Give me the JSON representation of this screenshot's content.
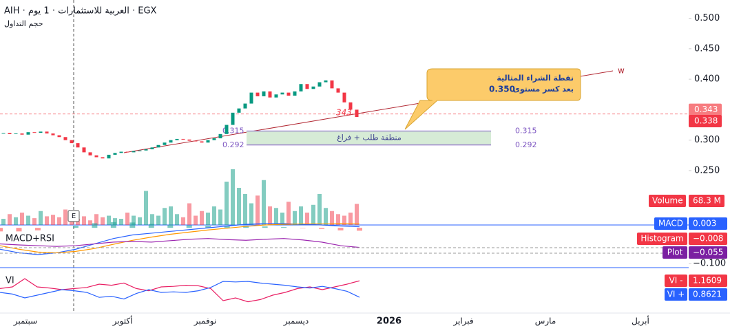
{
  "header": {
    "title": "AIH · العربية للاستثمارات · 1 يوم · EGX",
    "subtitle": "حجم التداول"
  },
  "chart_data": {
    "type": "candlestick",
    "open_first": 0.311,
    "closes": [
      0.312,
      0.31,
      0.311,
      0.309,
      0.313,
      0.312,
      0.314,
      0.311,
      0.308,
      0.305,
      0.3,
      0.295,
      0.288,
      0.28,
      0.275,
      0.272,
      0.27,
      0.276,
      0.279,
      0.281,
      0.28,
      0.282,
      0.283,
      0.285,
      0.288,
      0.292,
      0.296,
      0.3,
      0.302,
      0.301,
      0.299,
      0.298,
      0.296,
      0.3,
      0.303,
      0.31,
      0.325,
      0.345,
      0.352,
      0.36,
      0.378,
      0.372,
      0.38,
      0.37,
      0.375,
      0.378,
      0.373,
      0.38,
      0.392,
      0.384,
      0.388,
      0.395,
      0.398,
      0.385,
      0.378,
      0.362,
      0.35,
      0.338
    ],
    "up_color": "#089981",
    "down_color": "#f23645",
    "ylim": [
      0.163,
      0.53
    ],
    "yticks": [
      {
        "value": 0.5,
        "label": "0.500"
      },
      {
        "value": 0.45,
        "label": "0.450"
      },
      {
        "value": 0.4,
        "label": "0.400"
      },
      {
        "value": 0.3,
        "label": "0.300"
      },
      {
        "value": 0.25,
        "label": "0.250"
      }
    ],
    "price_tags": [
      {
        "value": 0.343,
        "label": "0.343",
        "color": "#f77c80"
      },
      {
        "value": 0.338,
        "label": "0.338",
        "color": "#f23645"
      }
    ],
    "zone": {
      "label": "منطقة طلب + فراغ",
      "top": {
        "value": 0.315,
        "label": "0.315"
      },
      "bottom": {
        "value": 0.292,
        "label": "0.292"
      }
    },
    "callout": {
      "line1": "نقطة الشراء المثالية",
      "line2": "بعد كسر مستوى",
      "level": {
        "value": 0.35,
        "label": "0.350"
      }
    },
    "mark_label": "343",
    "wave_label": "w",
    "event_label": "E",
    "volume": {
      "name": "Volume",
      "last": {
        "value": 68.3,
        "label": "68.3 M"
      },
      "values": [
        20,
        35,
        25,
        40,
        30,
        22,
        45,
        28,
        33,
        25,
        50,
        30,
        20,
        28,
        15,
        35,
        25,
        30,
        22,
        20,
        40,
        30,
        25,
        110,
        35,
        30,
        55,
        60,
        35,
        25,
        70,
        30,
        45,
        40,
        60,
        50,
        140,
        180,
        120,
        100,
        70,
        95,
        145,
        60,
        55,
        40,
        75,
        45,
        60,
        40,
        65,
        100,
        55,
        45,
        35,
        30,
        40,
        68.3
      ]
    },
    "macd": {
      "name": "MACD+RSI",
      "macd_label": "MACD",
      "macd_value": {
        "value": 0.003,
        "label": "0.003"
      },
      "hist_label": "Histogram",
      "hist_value": {
        "value": -0.008,
        "label": "−0.008"
      },
      "plot_label": "Plot",
      "plot_value": {
        "value": -0.055,
        "label": "−0.055"
      },
      "tick": {
        "value": -0.1,
        "label": "−0.100"
      },
      "macd_line": [
        -0.06,
        -0.07,
        -0.075,
        -0.07,
        -0.06,
        -0.045,
        -0.03,
        -0.02,
        -0.015,
        -0.01,
        -0.005,
        0.0,
        0.005,
        0.01,
        0.012,
        0.012,
        0.01,
        0.008,
        0.005,
        0.003
      ],
      "signal_line": [
        -0.05,
        -0.06,
        -0.068,
        -0.07,
        -0.066,
        -0.058,
        -0.046,
        -0.035,
        -0.026,
        -0.018,
        -0.012,
        -0.006,
        -0.001,
        0.004,
        0.008,
        0.01,
        0.011,
        0.011,
        0.012,
        0.011
      ],
      "plot_line": [
        -0.045,
        -0.048,
        -0.05,
        -0.052,
        -0.05,
        -0.045,
        -0.04,
        -0.038,
        -0.04,
        -0.036,
        -0.032,
        -0.03,
        -0.033,
        -0.035,
        -0.032,
        -0.03,
        -0.034,
        -0.04,
        -0.05,
        -0.055
      ],
      "histogram": [
        -0.01,
        -0.01,
        -0.007,
        0,
        0.006,
        0.013,
        0.016,
        0.015,
        0.011,
        0.008,
        0.007,
        0.006,
        0.006,
        0.006,
        0.004,
        0.002,
        -0.001,
        -0.003,
        -0.007,
        -0.008
      ]
    },
    "vi": {
      "name": "VI",
      "minus_label": "VI -",
      "plus_label": "VI +",
      "minus_value": {
        "value": 1.1609,
        "label": "1.1609"
      },
      "plus_value": {
        "value": 0.8621,
        "label": "0.8621"
      },
      "vi_minus": [
        1.02,
        1.05,
        1.2,
        1.05,
        1.03,
        1.0,
        1.02,
        1.04,
        1.1,
        1.08,
        1.12,
        1.02,
        0.98,
        1.05,
        1.06,
        1.08,
        1.07,
        1.02,
        0.8,
        0.85,
        0.78,
        0.82,
        0.9,
        0.95,
        1.02,
        1.05,
        1.0,
        1.05,
        1.1,
        1.1609
      ],
      "vi_plus": [
        0.95,
        0.92,
        0.85,
        0.9,
        0.95,
        1.0,
        0.98,
        0.95,
        0.86,
        0.88,
        0.83,
        0.93,
        1.0,
        0.95,
        0.96,
        0.95,
        0.98,
        1.04,
        1.15,
        1.14,
        1.15,
        1.12,
        1.1,
        1.08,
        1.05,
        1.03,
        1.06,
        1.02,
        0.97,
        0.8621
      ]
    },
    "time_labels": [
      "سبتمبر",
      "أكتوبر",
      "نوفمبر",
      "ديسمبر",
      "2026",
      "فبراير",
      "مارس",
      "أبريل"
    ]
  }
}
